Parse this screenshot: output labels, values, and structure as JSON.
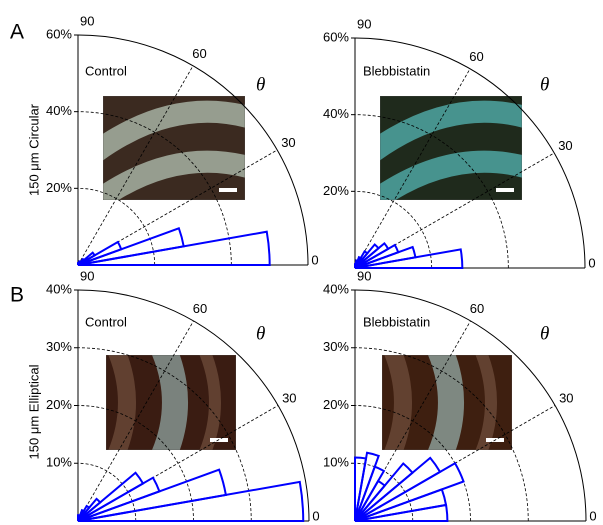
{
  "figure": {
    "panels": [
      {
        "label": "A",
        "row_title": "150 μm Circular"
      },
      {
        "label": "B",
        "row_title": "150 μm Elliptical"
      }
    ]
  },
  "chart_data": [
    {
      "type": "polar_bar",
      "title": "Control",
      "theta_label": "θ",
      "color": "#0000ff",
      "theta_bins": [
        0,
        10,
        20,
        30,
        40,
        50,
        60,
        70,
        80,
        90
      ],
      "values": [
        50,
        28,
        12,
        5,
        2,
        1,
        1,
        0.5,
        0.5
      ],
      "rlim": [
        0,
        60
      ],
      "rticks": [
        {
          "value": 20,
          "label": "20%"
        },
        {
          "value": 40,
          "label": "40%"
        },
        {
          "value": 60,
          "label": "60%"
        }
      ],
      "thetalim": [
        0,
        90
      ],
      "thetaticks": [
        0,
        30,
        60,
        90
      ],
      "grid": true
    },
    {
      "type": "polar_bar",
      "title": "Blebbistatin",
      "theta_label": "θ",
      "color": "#0000ff",
      "theta_bins": [
        0,
        10,
        20,
        30,
        40,
        50,
        60,
        70,
        80,
        90
      ],
      "values": [
        28,
        16,
        12,
        10,
        8,
        5,
        3,
        2,
        1
      ],
      "rlim": [
        0,
        60
      ],
      "rticks": [
        {
          "value": 20,
          "label": "20%"
        },
        {
          "value": 40,
          "label": "40%"
        },
        {
          "value": 60,
          "label": "60%"
        }
      ],
      "thetalim": [
        0,
        90
      ],
      "thetaticks": [
        0,
        30,
        60,
        90
      ],
      "grid": true
    },
    {
      "type": "polar_bar",
      "title": "Control",
      "theta_label": "θ",
      "color": "#0000ff",
      "theta_bins": [
        0,
        10,
        20,
        30,
        40,
        50,
        60,
        70,
        80,
        90
      ],
      "values": [
        39,
        26,
        15,
        13,
        5,
        3,
        2,
        1,
        1
      ],
      "rlim": [
        0,
        40
      ],
      "rticks": [
        {
          "value": 10,
          "label": "10%"
        },
        {
          "value": 20,
          "label": "20%"
        },
        {
          "value": 30,
          "label": "30%"
        },
        {
          "value": 40,
          "label": "40%"
        }
      ],
      "thetalim": [
        0,
        90
      ],
      "thetaticks": [
        0,
        30,
        60,
        90
      ],
      "grid": true
    },
    {
      "type": "polar_bar",
      "title": "Blebbistatin",
      "theta_label": "θ",
      "color": "#0000ff",
      "theta_bins": [
        0,
        10,
        20,
        30,
        40,
        50,
        60,
        70,
        80,
        90
      ],
      "values": [
        16,
        16,
        20,
        17,
        13,
        8,
        10,
        12,
        11
      ],
      "rlim": [
        0,
        40
      ],
      "rticks": [
        {
          "value": 10,
          "label": "10%"
        },
        {
          "value": 20,
          "label": "20%"
        },
        {
          "value": 30,
          "label": "30%"
        },
        {
          "value": 40,
          "label": "40%"
        }
      ],
      "thetalim": [
        0,
        90
      ],
      "thetaticks": [
        0,
        30,
        60,
        90
      ],
      "grid": true
    }
  ]
}
